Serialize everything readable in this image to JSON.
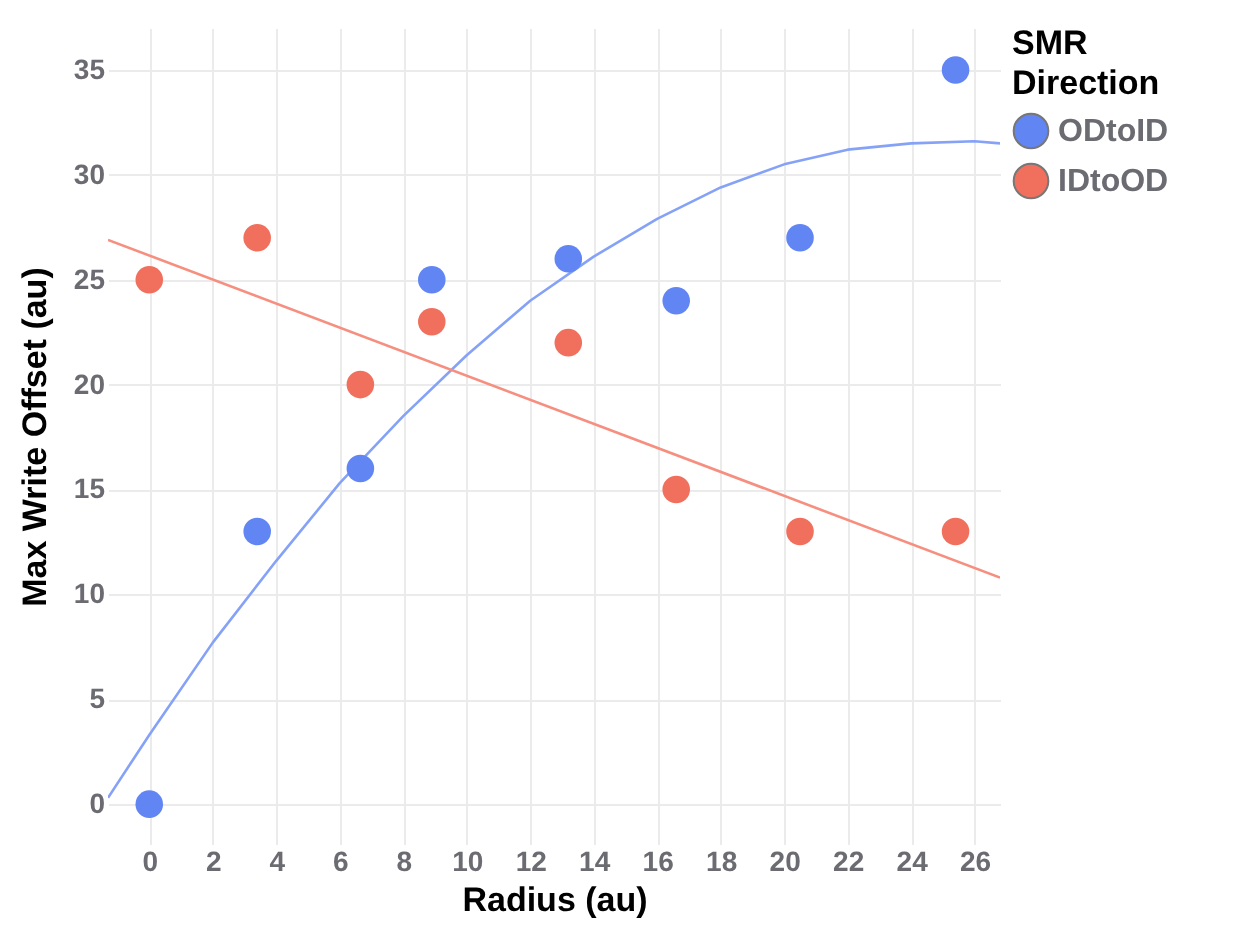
{
  "chart_data": {
    "type": "scatter",
    "xlabel": "Radius (au)",
    "ylabel": "Max Write Offset (au)",
    "legend_title": "SMR Direction",
    "xlim": [
      -1.3,
      26.8
    ],
    "xticks": [
      0,
      2,
      4,
      6,
      8,
      10,
      12,
      14,
      16,
      18,
      20,
      22,
      24,
      26
    ],
    "ylim": [
      -1.9,
      37
    ],
    "yticks": [
      0,
      5,
      10,
      15,
      20,
      25,
      30,
      35
    ],
    "grid": true,
    "legend": "top right",
    "marker": "circle",
    "series": [
      {
        "name": "ODtoID",
        "color": "#6185f2",
        "x": [
          0,
          3.4,
          6.65,
          8.9,
          13.2,
          16.6,
          20.5,
          25.4
        ],
        "values": [
          0,
          13,
          16,
          25,
          26,
          24,
          27,
          35
        ]
      },
      {
        "name": "IDtoOD",
        "color": "#f1705d",
        "x": [
          0,
          3.4,
          6.65,
          8.9,
          13.2,
          16.6,
          20.5,
          25.4
        ],
        "values": [
          25,
          27,
          20,
          23,
          22,
          15,
          13,
          13
        ]
      },
      {
        "type": "line",
        "marker": "none",
        "color": "#85a2f7",
        "x": [
          -1.3,
          0,
          2,
          4,
          6,
          8,
          10,
          12,
          14,
          16,
          18,
          20,
          22,
          24,
          26,
          26.8
        ],
        "values": [
          0.3,
          3.3,
          7.7,
          11.6,
          15.3,
          18.5,
          21.4,
          24.0,
          26.1,
          27.9,
          29.4,
          30.5,
          31.2,
          31.5,
          31.6,
          31.5
        ]
      },
      {
        "type": "line",
        "marker": "none",
        "color": "#f68f7f",
        "x": [
          -1.3,
          26.8
        ],
        "values": [
          26.9,
          10.8
        ]
      }
    ]
  }
}
